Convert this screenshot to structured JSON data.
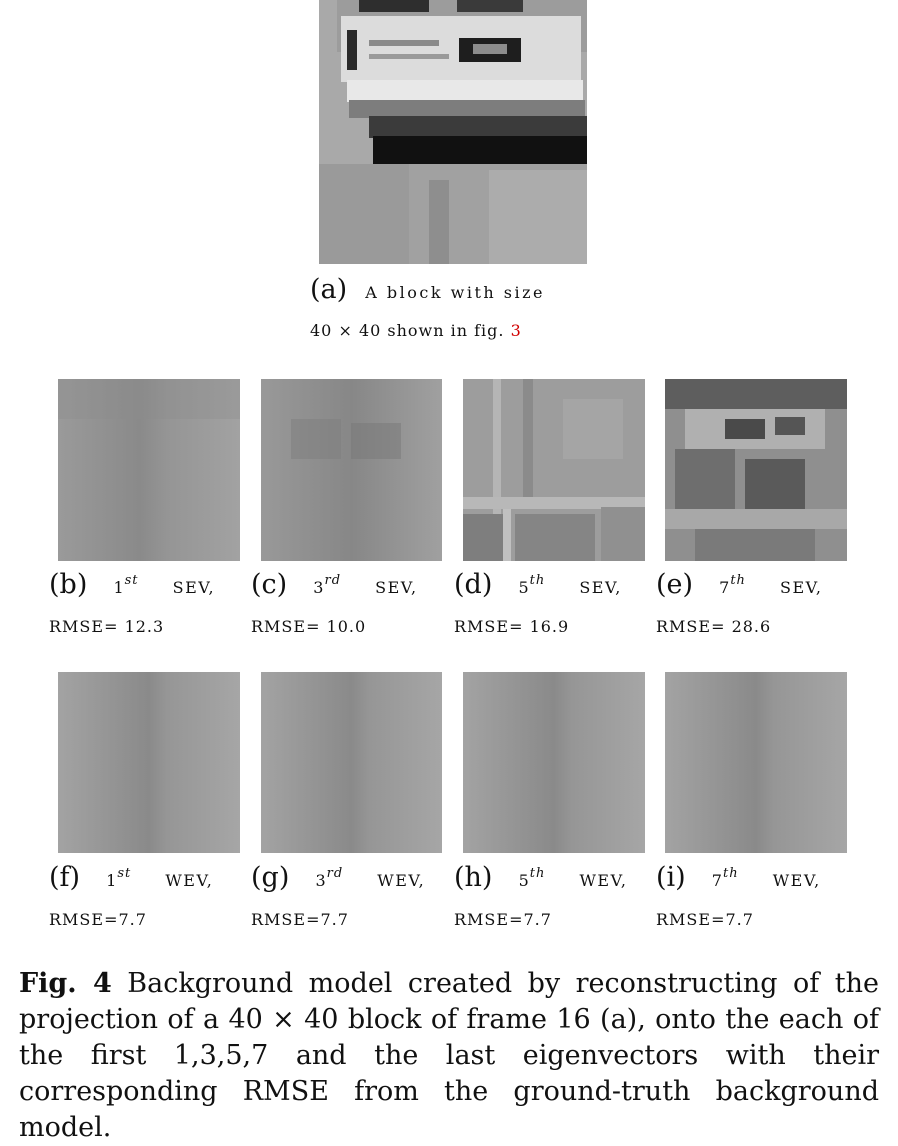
{
  "panel_a": {
    "label": "(a)",
    "caption_line1": "A block with size",
    "caption_line2": "40 × 40 shown in fig.",
    "fig_ref": "3"
  },
  "sev_row": [
    {
      "label": "(b)",
      "ord_base": "1",
      "ord_sup": "st",
      "kind": "SEV,",
      "rmse": "RMSE= 12.3"
    },
    {
      "label": "(c)",
      "ord_base": "3",
      "ord_sup": "rd",
      "kind": "SEV,",
      "rmse": "RMSE= 10.0"
    },
    {
      "label": "(d)",
      "ord_base": "5",
      "ord_sup": "th",
      "kind": "SEV,",
      "rmse": "RMSE= 16.9"
    },
    {
      "label": "(e)",
      "ord_base": "7",
      "ord_sup": "th",
      "kind": "SEV,",
      "rmse": "RMSE= 28.6"
    }
  ],
  "wev_row": [
    {
      "label": "(f)",
      "ord_base": "1",
      "ord_sup": "st",
      "kind": "WEV,",
      "rmse": "RMSE=7.7"
    },
    {
      "label": "(g)",
      "ord_base": "3",
      "ord_sup": "rd",
      "kind": "WEV,",
      "rmse": "RMSE=7.7"
    },
    {
      "label": "(h)",
      "ord_base": "5",
      "ord_sup": "th",
      "kind": "WEV,",
      "rmse": "RMSE=7.7"
    },
    {
      "label": "(i)",
      "ord_base": "7",
      "ord_sup": "th",
      "kind": "WEV,",
      "rmse": "RMSE=7.7"
    }
  ],
  "figure_caption": {
    "prefix": "Fig. 4",
    "text": "Background model created by reconstructing of the projection of a 40 × 40 block of frame 16 (a), onto the each of the first 1,3,5,7 and the last eigenvectors with their corresponding RMSE from the ground-truth background model."
  }
}
